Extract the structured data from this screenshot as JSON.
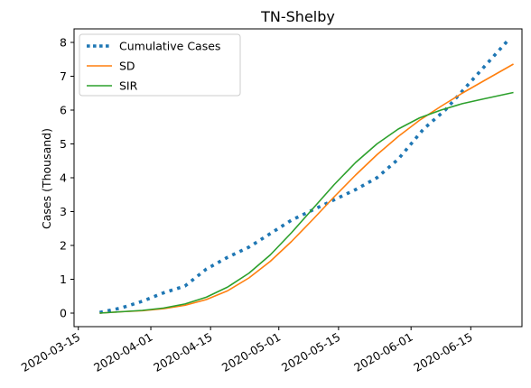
{
  "chart_data": {
    "type": "line",
    "title": "TN-Shelby",
    "xlabel": "",
    "ylabel": "Cases (Thousand)",
    "x_ticks": [
      "2020-03-15",
      "2020-04-01",
      "2020-04-15",
      "2020-05-01",
      "2020-05-15",
      "2020-06-01",
      "2020-06-15"
    ],
    "y_ticks": [
      0,
      1,
      2,
      3,
      4,
      5,
      6,
      7,
      8
    ],
    "xlim": [
      "2020-03-14",
      "2020-06-27"
    ],
    "ylim": [
      -0.4,
      8.4
    ],
    "grid": false,
    "legend_position": "top-left",
    "series": [
      {
        "name": "Cumulative Cases",
        "style": "dotted",
        "color": "#1f77b4",
        "points": [
          [
            "2020-03-20",
            0.02
          ],
          [
            "2020-03-25",
            0.15
          ],
          [
            "2020-03-30",
            0.35
          ],
          [
            "2020-04-04",
            0.6
          ],
          [
            "2020-04-09",
            0.8
          ],
          [
            "2020-04-14",
            1.3
          ],
          [
            "2020-04-19",
            1.65
          ],
          [
            "2020-04-24",
            1.95
          ],
          [
            "2020-04-29",
            2.35
          ],
          [
            "2020-05-04",
            2.75
          ],
          [
            "2020-05-09",
            3.05
          ],
          [
            "2020-05-14",
            3.35
          ],
          [
            "2020-05-19",
            3.65
          ],
          [
            "2020-05-24",
            4.0
          ],
          [
            "2020-05-29",
            4.55
          ],
          [
            "2020-06-01",
            5.0
          ],
          [
            "2020-06-04",
            5.45
          ],
          [
            "2020-06-09",
            6.0
          ],
          [
            "2020-06-14",
            6.7
          ],
          [
            "2020-06-19",
            7.4
          ],
          [
            "2020-06-24",
            8.1
          ]
        ]
      },
      {
        "name": "SD",
        "style": "solid",
        "color": "#ff7f0e",
        "points": [
          [
            "2020-03-20",
            0.0
          ],
          [
            "2020-03-25",
            0.04
          ],
          [
            "2020-03-30",
            0.07
          ],
          [
            "2020-04-04",
            0.13
          ],
          [
            "2020-04-09",
            0.23
          ],
          [
            "2020-04-14",
            0.4
          ],
          [
            "2020-04-19",
            0.66
          ],
          [
            "2020-04-24",
            1.04
          ],
          [
            "2020-04-29",
            1.53
          ],
          [
            "2020-05-04",
            2.12
          ],
          [
            "2020-05-09",
            2.77
          ],
          [
            "2020-05-14",
            3.44
          ],
          [
            "2020-05-19",
            4.08
          ],
          [
            "2020-05-24",
            4.68
          ],
          [
            "2020-05-29",
            5.22
          ],
          [
            "2020-06-03",
            5.7
          ],
          [
            "2020-06-08",
            6.11
          ],
          [
            "2020-06-13",
            6.5
          ],
          [
            "2020-06-18",
            6.86
          ],
          [
            "2020-06-25",
            7.36
          ]
        ]
      },
      {
        "name": "SIR",
        "style": "solid",
        "color": "#2ca02c",
        "points": [
          [
            "2020-03-20",
            0.0
          ],
          [
            "2020-03-25",
            0.04
          ],
          [
            "2020-03-30",
            0.08
          ],
          [
            "2020-04-04",
            0.15
          ],
          [
            "2020-04-09",
            0.27
          ],
          [
            "2020-04-14",
            0.47
          ],
          [
            "2020-04-19",
            0.77
          ],
          [
            "2020-04-24",
            1.18
          ],
          [
            "2020-04-29",
            1.72
          ],
          [
            "2020-05-04",
            2.38
          ],
          [
            "2020-05-09",
            3.09
          ],
          [
            "2020-05-14",
            3.8
          ],
          [
            "2020-05-19",
            4.45
          ],
          [
            "2020-05-24",
            5.0
          ],
          [
            "2020-05-29",
            5.44
          ],
          [
            "2020-06-03",
            5.77
          ],
          [
            "2020-06-08",
            6.0
          ],
          [
            "2020-06-13",
            6.19
          ],
          [
            "2020-06-18",
            6.33
          ],
          [
            "2020-06-25",
            6.52
          ]
        ]
      }
    ]
  }
}
